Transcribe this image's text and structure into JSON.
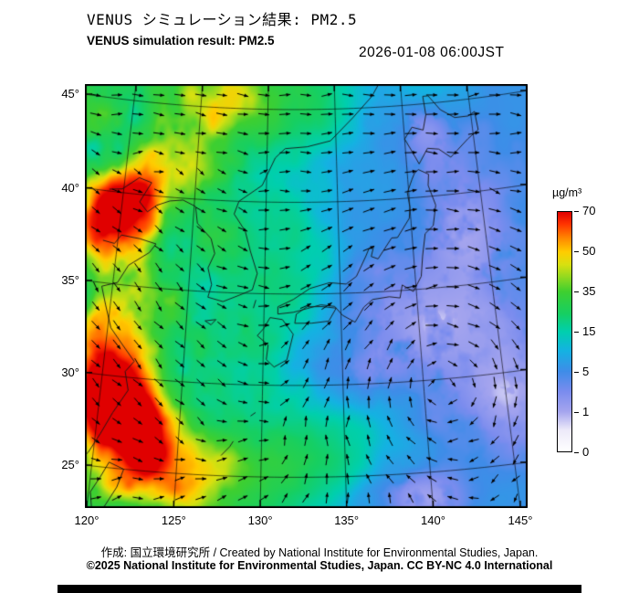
{
  "header": {
    "title_jp": "VENUS シミュレーション結果: PM2.5",
    "title_en": "VENUS simulation result: PM2.5",
    "datetime": "2026-01-08 06:00JST"
  },
  "footer": {
    "credit": "作成: 国立環境研究所 / Created by National Institute for Environmental Studies, Japan.",
    "license": "©2025 National Institute for Environmental Studies, Japan. CC BY-NC 4.0 International"
  },
  "colors": {
    "background": "#ffffff",
    "frame": "#000000",
    "coastline": "#161616",
    "arrow": "#000000"
  },
  "chart_data": {
    "type": "heatmap",
    "title": "VENUS simulation result: PM2.5",
    "variable": "PM2.5",
    "unit": "µg/m³",
    "datetime": "2026-01-08 06:00JST",
    "projection": "lambert_conic",
    "lon_ticks": [
      120,
      125,
      130,
      135,
      140,
      145
    ],
    "lon_tick_labels": [
      "120°",
      "125°",
      "130°",
      "135°",
      "140°",
      "145°"
    ],
    "lat_ticks": [
      45,
      40,
      35,
      30,
      25
    ],
    "lat_tick_labels": [
      "45°",
      "40°",
      "35°",
      "30°",
      "25°"
    ],
    "colorbar": {
      "unit": "µg/m³",
      "tick_values": [
        70,
        50,
        35,
        15,
        5,
        1,
        0
      ],
      "tick_labels": [
        "70",
        "50",
        "35",
        "15",
        "5",
        "1",
        "0"
      ],
      "gradient": [
        {
          "p": 0.0,
          "c": "#ffffff"
        },
        {
          "p": 0.09,
          "c": "#ece9f9"
        },
        {
          "p": 0.167,
          "c": "#a4a4ee"
        },
        {
          "p": 0.25,
          "c": "#7a8cee"
        },
        {
          "p": 0.333,
          "c": "#3f8ce8"
        },
        {
          "p": 0.42,
          "c": "#14b2e2"
        },
        {
          "p": 0.5,
          "c": "#00cfae"
        },
        {
          "p": 0.575,
          "c": "#16cf62"
        },
        {
          "p": 0.667,
          "c": "#3ecf30"
        },
        {
          "p": 0.72,
          "c": "#86d822"
        },
        {
          "p": 0.78,
          "c": "#d8e010"
        },
        {
          "p": 0.833,
          "c": "#ffcc00"
        },
        {
          "p": 0.89,
          "c": "#ff8800"
        },
        {
          "p": 0.95,
          "c": "#ff3300"
        },
        {
          "p": 1.0,
          "c": "#e00000"
        }
      ]
    },
    "field": {
      "description": "PM2.5 concentration field: high (red >70) cells on China coast near Bohai (120E,39N) and Zhejiang (121E,29N); green continental outflow band over Yellow/East China Sea and along 25N; clean white air masses over NW Pacific east of Japan",
      "hotspots": [
        [
          120.1,
          39.4,
          1.7,
          58
        ],
        [
          119.3,
          37.0,
          1.6,
          25
        ],
        [
          119.5,
          33.0,
          1.6,
          18
        ],
        [
          120.6,
          29.3,
          1.9,
          62
        ],
        [
          121.8,
          27.5,
          1.6,
          46
        ],
        [
          122.9,
          26.0,
          1.6,
          32
        ],
        [
          124.6,
          24.6,
          2.0,
          20
        ],
        [
          127.6,
          25.2,
          2.3,
          14
        ],
        [
          131.2,
          25.6,
          2.3,
          12
        ],
        [
          134.5,
          26.3,
          2.1,
          9
        ],
        [
          126.8,
          45.7,
          1.9,
          27
        ],
        [
          123.8,
          44.4,
          2.0,
          12
        ],
        [
          130.6,
          45.2,
          2.3,
          13
        ],
        [
          133.8,
          45.9,
          1.9,
          10
        ],
        [
          122.7,
          34.0,
          1.7,
          12
        ],
        [
          126.3,
          37.3,
          1.5,
          7
        ],
        [
          131.8,
          36.6,
          2.2,
          6
        ],
        [
          130.3,
          33.6,
          1.9,
          7
        ],
        [
          125.5,
          41.0,
          1.8,
          10
        ],
        [
          122.5,
          41.5,
          1.8,
          12
        ],
        [
          142.8,
          46.2,
          1.8,
          8
        ]
      ],
      "clean_spots": [
        [
          141.0,
          33.0,
          3.2,
          2.2,
          0.88
        ],
        [
          143.6,
          37.5,
          2.4,
          2.6,
          0.85
        ],
        [
          141.6,
          43.6,
          1.8,
          1.5,
          0.75
        ],
        [
          145.0,
          29.0,
          2.6,
          2.2,
          0.8
        ],
        [
          139.6,
          23.6,
          2.0,
          1.4,
          0.85
        ],
        [
          136.5,
          30.8,
          1.8,
          1.4,
          0.55
        ]
      ]
    },
    "wind": {
      "pattern": "winter NW monsoon over continent, westerlies in north, anticyclonic circulation over NW Pacific",
      "anticyclone": {
        "lon": 141.5,
        "lat": 30.5,
        "strength": 1.7,
        "sigma": 5.5
      }
    },
    "coastlines": [
      [
        119.0,
        25.0,
        119.7,
        25.7,
        120.3,
        26.8,
        120.9,
        28.0,
        121.7,
        29.3,
        121.4,
        30.3,
        121.9,
        30.9,
        121.0,
        31.8,
        120.2,
        32.6,
        119.7,
        33.8,
        119.3,
        34.8,
        120.3,
        35.1,
        120.9,
        36.1,
        122.2,
        36.9,
        122.6,
        37.4,
        121.5,
        37.6,
        120.2,
        37.7,
        119.8,
        37.2,
        119.0,
        37.3
      ],
      [
        119.0,
        40.1,
        119.9,
        40.2,
        121.0,
        40.9,
        121.9,
        40.7,
        121.2,
        39.6,
        121.8,
        39.1,
        122.4,
        39.5,
        123.3,
        39.8,
        124.2,
        39.9,
        125.1,
        39.6,
        125.3,
        38.7,
        126.3,
        37.9,
        126.6,
        37.1,
        126.2,
        36.3,
        126.5,
        35.4,
        126.3,
        34.7,
        127.3,
        34.5,
        128.4,
        34.9,
        129.2,
        35.2,
        129.5,
        36.1,
        129.0,
        37.3,
        128.6,
        38.4,
        127.8,
        39.3,
        128.1,
        40.0,
        129.7,
        40.9,
        130.6,
        42.4,
        131.3,
        42.9,
        132.9,
        43.0,
        134.6,
        43.3,
        136.3,
        44.5,
        137.8,
        45.6,
        138.7,
        46.6
      ],
      [
        121.0,
        25.3,
        121.9,
        25.0,
        121.6,
        24.0,
        121.0,
        22.9,
        120.3,
        22.6,
        120.1,
        23.6,
        120.6,
        24.5,
        121.0,
        25.3
      ],
      [
        130.4,
        33.7,
        131.2,
        33.6,
        131.9,
        32.8,
        131.5,
        31.4,
        130.7,
        31.0,
        130.2,
        31.4,
        130.3,
        32.2,
        129.6,
        32.7,
        130.0,
        33.1,
        130.4,
        33.7
      ],
      [
        132.0,
        33.4,
        133.1,
        33.4,
        134.2,
        33.5,
        134.7,
        34.2,
        133.8,
        34.3,
        132.8,
        34.3,
        132.1,
        33.9,
        132.0,
        33.4
      ],
      [
        140.8,
        41.5,
        141.5,
        41.2,
        141.4,
        40.6,
        141.8,
        39.5,
        141.5,
        38.4,
        140.9,
        38.0,
        140.6,
        36.8,
        140.4,
        35.7,
        139.8,
        34.9,
        139.1,
        35.3,
        138.9,
        34.6,
        138.2,
        34.7,
        137.1,
        34.6,
        136.5,
        34.2,
        135.9,
        33.4,
        135.1,
        33.8,
        134.6,
        34.3,
        133.7,
        34.4,
        132.8,
        34.2,
        131.9,
        34.0,
        130.9,
        33.9,
        130.9,
        34.3,
        131.9,
        34.7,
        133.0,
        35.3,
        134.3,
        35.6,
        135.4,
        35.5,
        136.1,
        35.9,
        136.8,
        37.0,
        137.0,
        37.35,
        137.35,
        37.5,
        137.15,
        36.95,
        137.6,
        36.8,
        138.6,
        37.9,
        139.0,
        37.9,
        139.9,
        38.9,
        140.0,
        39.5,
        139.9,
        40.3,
        140.3,
        41.0,
        140.5,
        41.3,
        140.8,
        41.5
      ],
      [
        140.9,
        41.8,
        140.4,
        42.6,
        140.0,
        43.2,
        140.6,
        43.8,
        141.4,
        43.6,
        141.7,
        44.4,
        141.6,
        45.4,
        142.0,
        45.4,
        142.8,
        44.6,
        143.8,
        44.1,
        144.8,
        44.1,
        145.3,
        44.3,
        145.4,
        43.3,
        144.6,
        42.9,
        143.2,
        42.0,
        142.4,
        42.5,
        141.6,
        42.6,
        140.9,
        41.8
      ],
      [
        141.9,
        46.8,
        142.1,
        46.0,
        142.4,
        46.4,
        142.3,
        46.8
      ],
      [
        126.2,
        33.4,
        126.9,
        33.5,
        126.6,
        33.2,
        126.2,
        33.4
      ],
      [
        127.6,
        26.1,
        128.1,
        26.6,
        128.3,
        26.9
      ],
      [
        129.3,
        28.3,
        129.6,
        28.5
      ],
      [
        129.3,
        34.2,
        129.45,
        34.65
      ]
    ]
  }
}
